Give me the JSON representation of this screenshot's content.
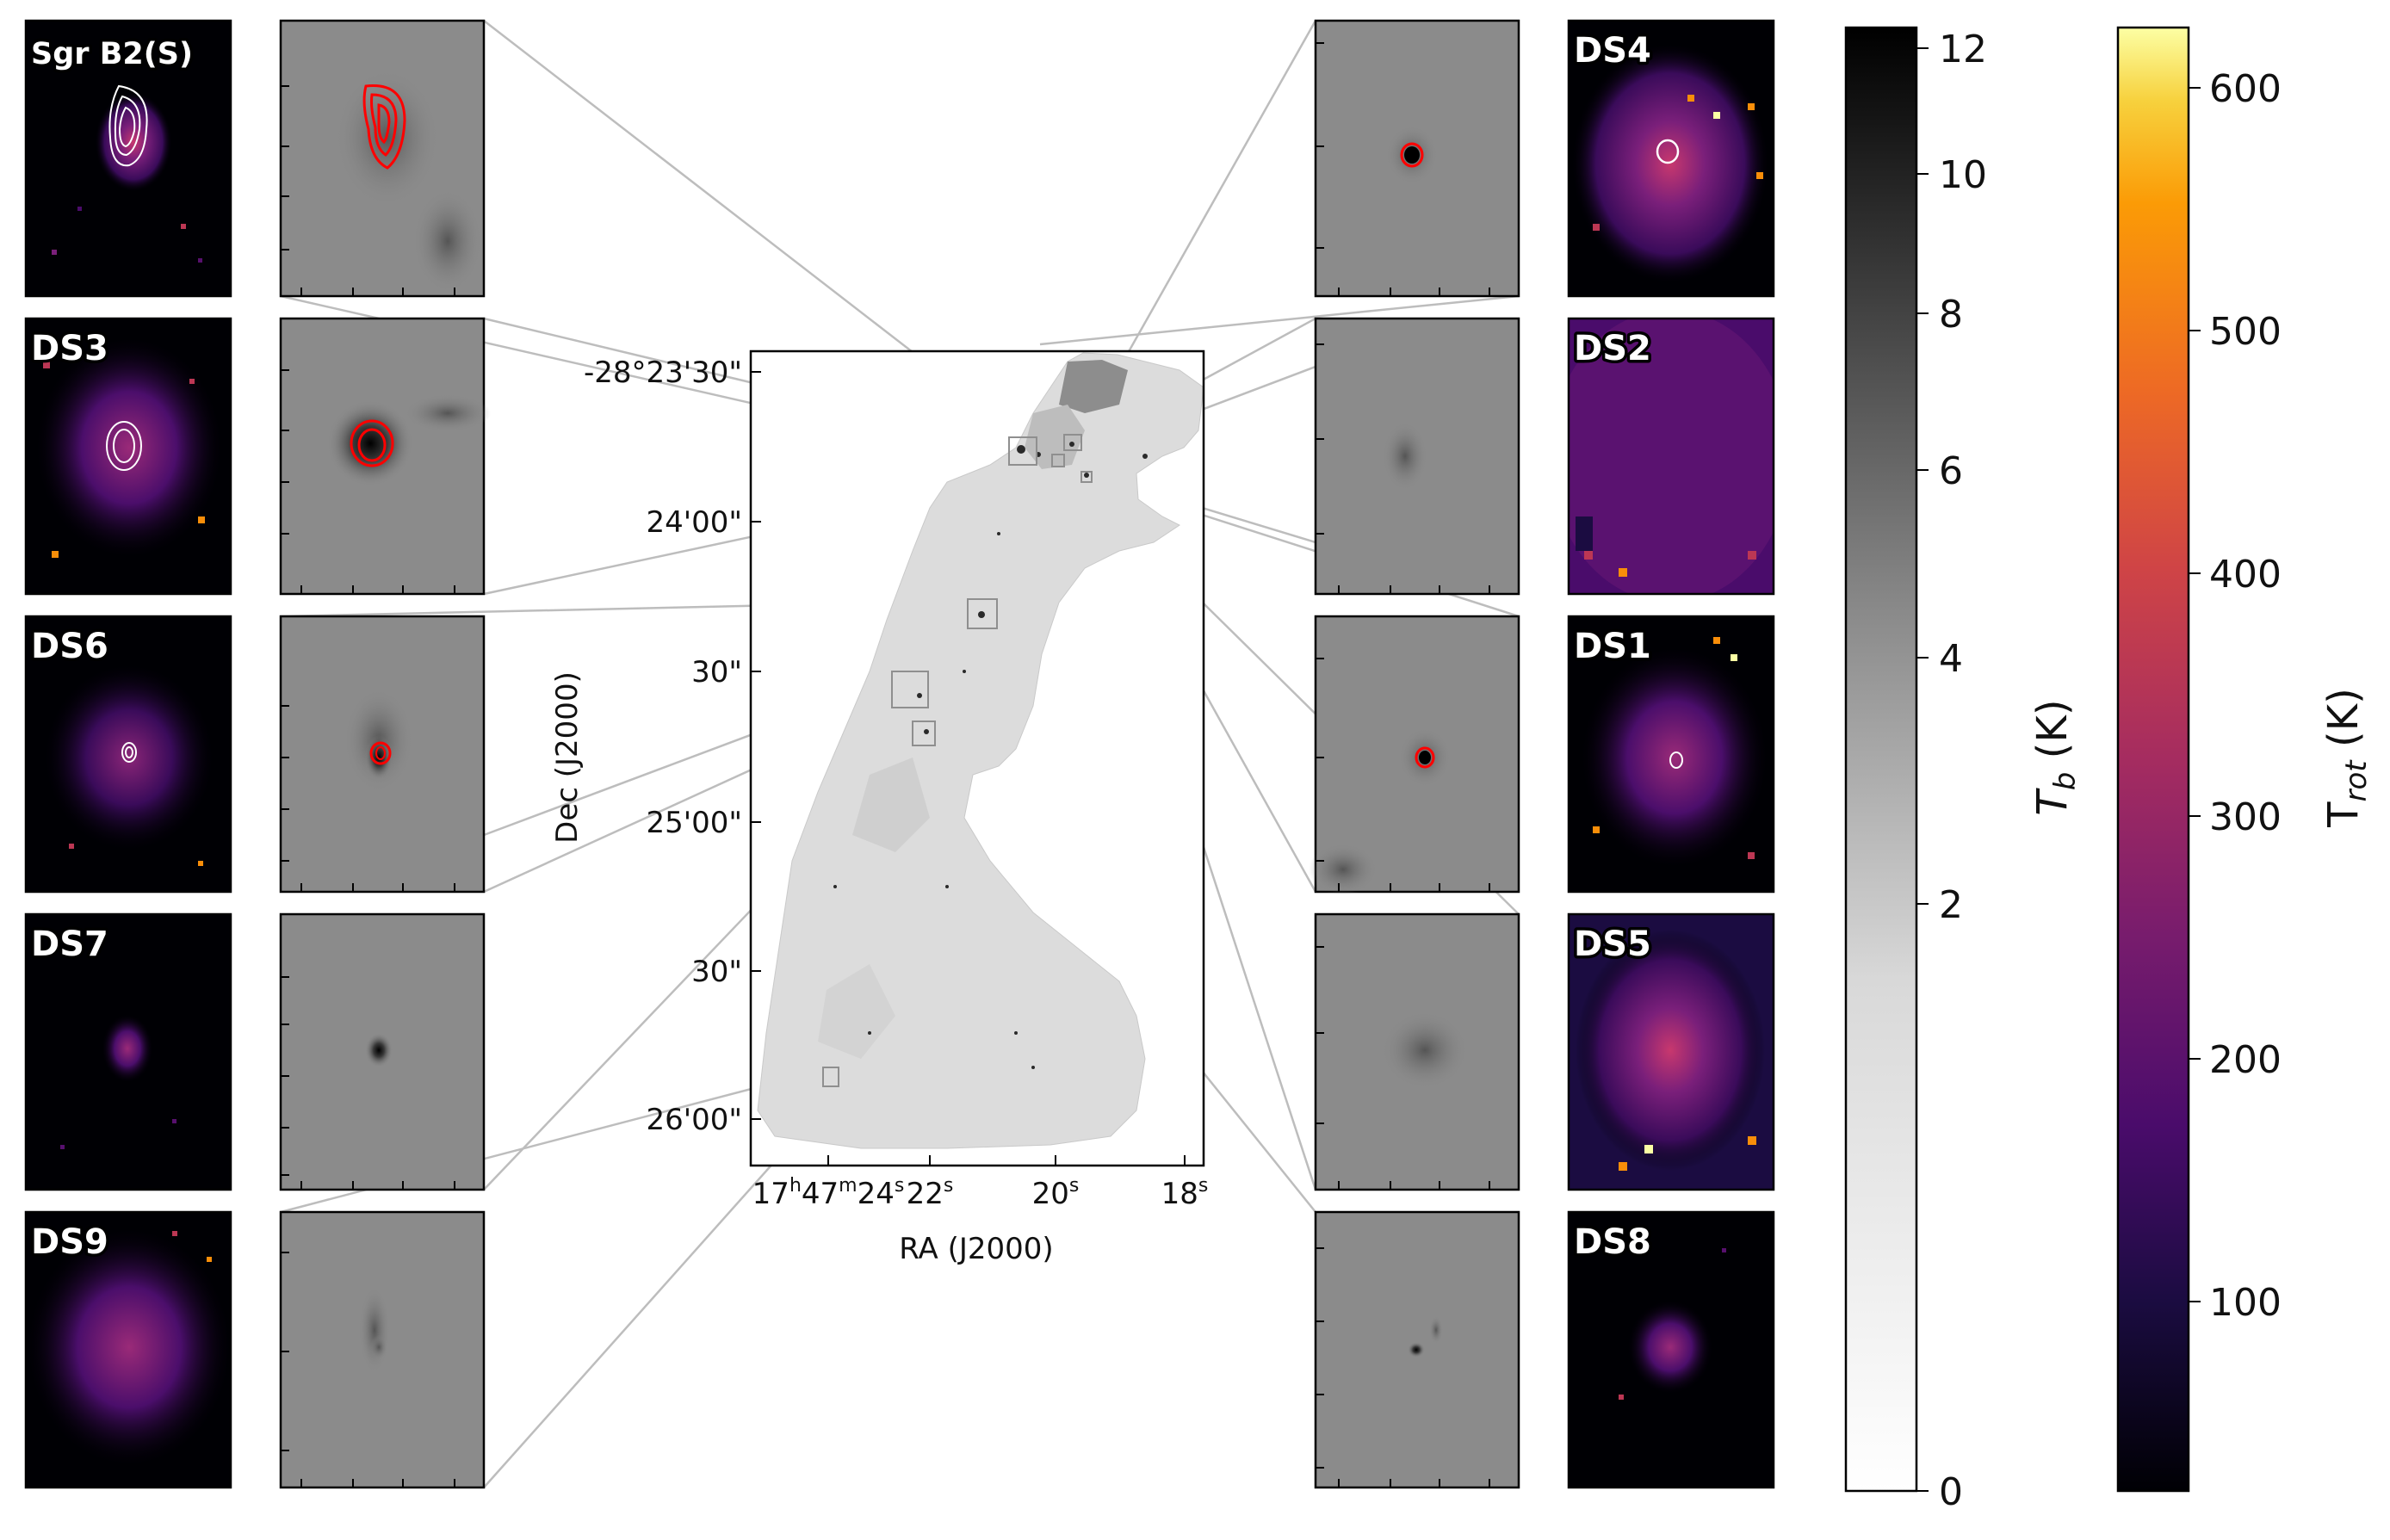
{
  "figure": {
    "thumb_labels": {
      "l1": "Sgr B2(S)",
      "l2": "DS3",
      "l3": "DS6",
      "l4": "DS7",
      "l5": "DS9",
      "r1": "DS4",
      "r2": "DS2",
      "r3": "DS1",
      "r4": "DS5",
      "r5": "DS8"
    },
    "center": {
      "dec_ticks": [
        "-28°23'30\"",
        "24'00\"",
        "30\"",
        "25'00\"",
        "30\"",
        "26'00\""
      ],
      "ra_ticks": [
        "22",
        "20",
        "18"
      ],
      "ra_first": {
        "h": "17",
        "hsup": "h",
        "m": "47",
        "msup": "m",
        "s": "24",
        "ssup": "s"
      },
      "ra_sec_sup": "s",
      "xlabel": "RA (J2000)",
      "ylabel": "Dec (J2000)"
    },
    "colorbar_tb": {
      "ticks": [
        "12",
        "10",
        "8",
        "6",
        "4",
        "2",
        "0"
      ],
      "label_main": "T",
      "label_sub": "b",
      "label_unit": " (K)",
      "colormap": "gray_r"
    },
    "colorbar_trot": {
      "ticks": [
        "600",
        "500",
        "400",
        "300",
        "200",
        "100"
      ],
      "label_main": "T",
      "label_sub": "rot",
      "label_unit": " (K)",
      "colormap": "inferno"
    },
    "colors": {
      "inferno_dark": "#000004",
      "inferno_purple": "#57106e",
      "inferno_mid": "#bc3754",
      "inferno_orange": "#f98e09",
      "inferno_light": "#fcffa4",
      "contour_red": "#ff0000",
      "contour_white": "#ffffff",
      "connector_gray": "#bdbdbd"
    }
  }
}
